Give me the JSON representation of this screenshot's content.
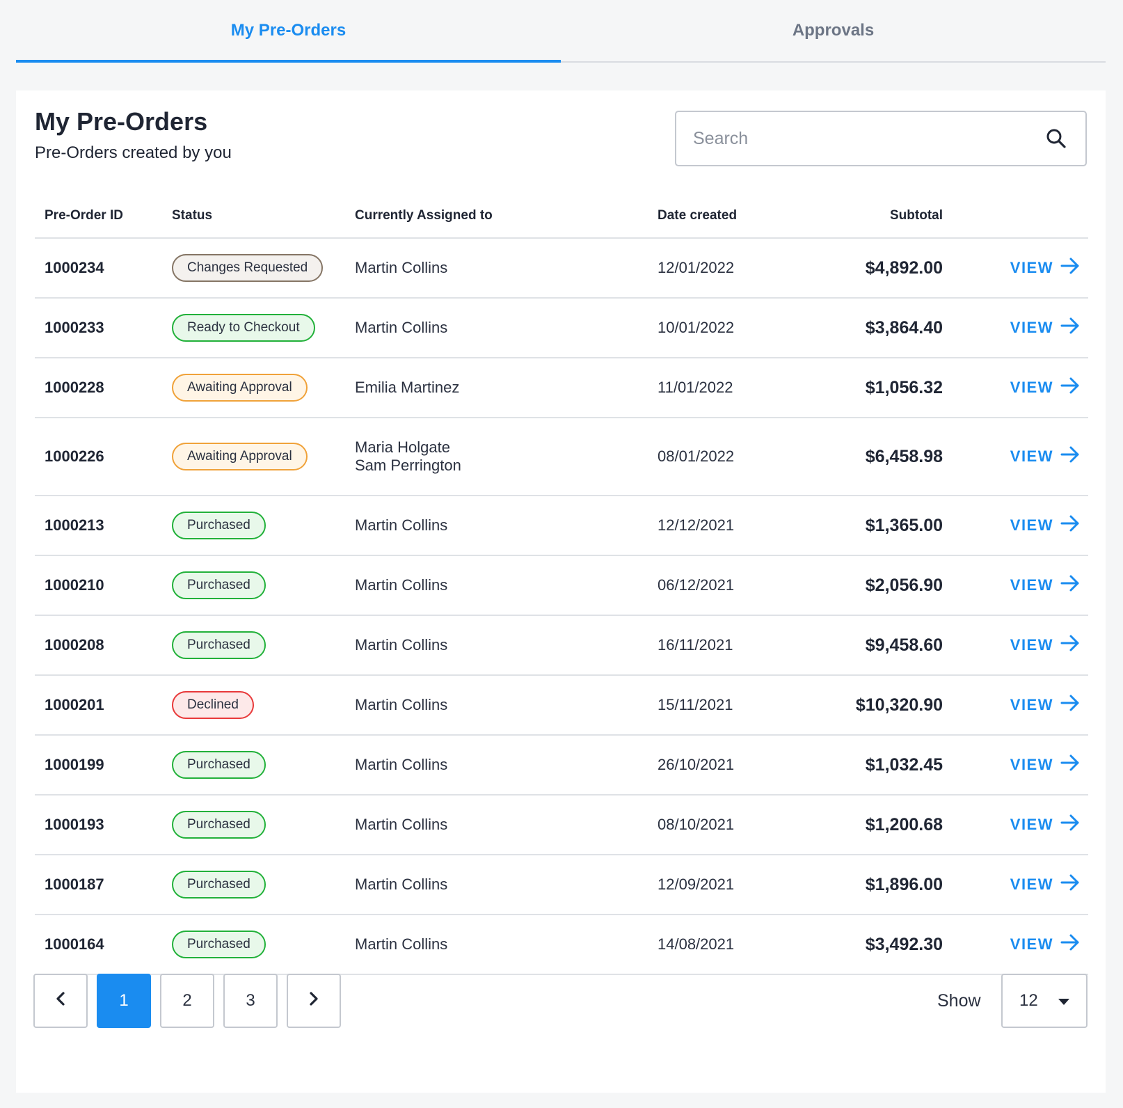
{
  "tabs": [
    {
      "label": "My Pre-Orders",
      "active": true
    },
    {
      "label": "Approvals",
      "active": false
    }
  ],
  "header": {
    "title": "My Pre-Orders",
    "subtitle": "Pre-Orders created by you"
  },
  "search": {
    "placeholder": "Search",
    "value": ""
  },
  "table": {
    "columns": [
      "Pre-Order ID",
      "Status",
      "Currently Assigned to",
      "Date created",
      "Subtotal"
    ],
    "view_label": "VIEW",
    "rows": [
      {
        "id": "1000234",
        "status": "Changes Requested",
        "status_type": "changes",
        "assigned": [
          "Martin Collins"
        ],
        "date": "12/01/2022",
        "subtotal": "$4,892.00"
      },
      {
        "id": "1000233",
        "status": "Ready to Checkout",
        "status_type": "ready",
        "assigned": [
          "Martin Collins"
        ],
        "date": "10/01/2022",
        "subtotal": "$3,864.40"
      },
      {
        "id": "1000228",
        "status": "Awaiting Approval",
        "status_type": "awaiting",
        "assigned": [
          "Emilia Martinez"
        ],
        "date": "11/01/2022",
        "subtotal": "$1,056.32"
      },
      {
        "id": "1000226",
        "status": "Awaiting Approval",
        "status_type": "awaiting",
        "assigned": [
          "Maria Holgate",
          "Sam Perrington"
        ],
        "date": "08/01/2022",
        "subtotal": "$6,458.98"
      },
      {
        "id": "1000213",
        "status": "Purchased",
        "status_type": "purchased",
        "assigned": [
          "Martin Collins"
        ],
        "date": "12/12/2021",
        "subtotal": "$1,365.00"
      },
      {
        "id": "1000210",
        "status": "Purchased",
        "status_type": "purchased",
        "assigned": [
          "Martin Collins"
        ],
        "date": "06/12/2021",
        "subtotal": "$2,056.90"
      },
      {
        "id": "1000208",
        "status": "Purchased",
        "status_type": "purchased",
        "assigned": [
          "Martin Collins"
        ],
        "date": "16/11/2021",
        "subtotal": "$9,458.60"
      },
      {
        "id": "1000201",
        "status": "Declined",
        "status_type": "declined",
        "assigned": [
          "Martin Collins"
        ],
        "date": "15/11/2021",
        "subtotal": "$10,320.90"
      },
      {
        "id": "1000199",
        "status": "Purchased",
        "status_type": "purchased",
        "assigned": [
          "Martin Collins"
        ],
        "date": "26/10/2021",
        "subtotal": "$1,032.45"
      },
      {
        "id": "1000193",
        "status": "Purchased",
        "status_type": "purchased",
        "assigned": [
          "Martin Collins"
        ],
        "date": "08/10/2021",
        "subtotal": "$1,200.68"
      },
      {
        "id": "1000187",
        "status": "Purchased",
        "status_type": "purchased",
        "assigned": [
          "Martin Collins"
        ],
        "date": "12/09/2021",
        "subtotal": "$1,896.00"
      },
      {
        "id": "1000164",
        "status": "Purchased",
        "status_type": "purchased",
        "assigned": [
          "Martin Collins"
        ],
        "date": "14/08/2021",
        "subtotal": "$3,492.30"
      }
    ]
  },
  "pagination": {
    "pages": [
      "1",
      "2",
      "3"
    ],
    "current": "1"
  },
  "page_size": {
    "label": "Show",
    "value": "12"
  },
  "colors": {
    "accent": "#1a8cf0",
    "success": "#22b13a",
    "warning": "#f0a23a",
    "danger": "#e8393a",
    "neutral": "#857565"
  },
  "icons": {
    "search": "search-icon",
    "view": "arrow-right-icon",
    "prev": "chevron-left-icon",
    "next": "chevron-right-icon",
    "dropdown": "caret-down-icon"
  }
}
